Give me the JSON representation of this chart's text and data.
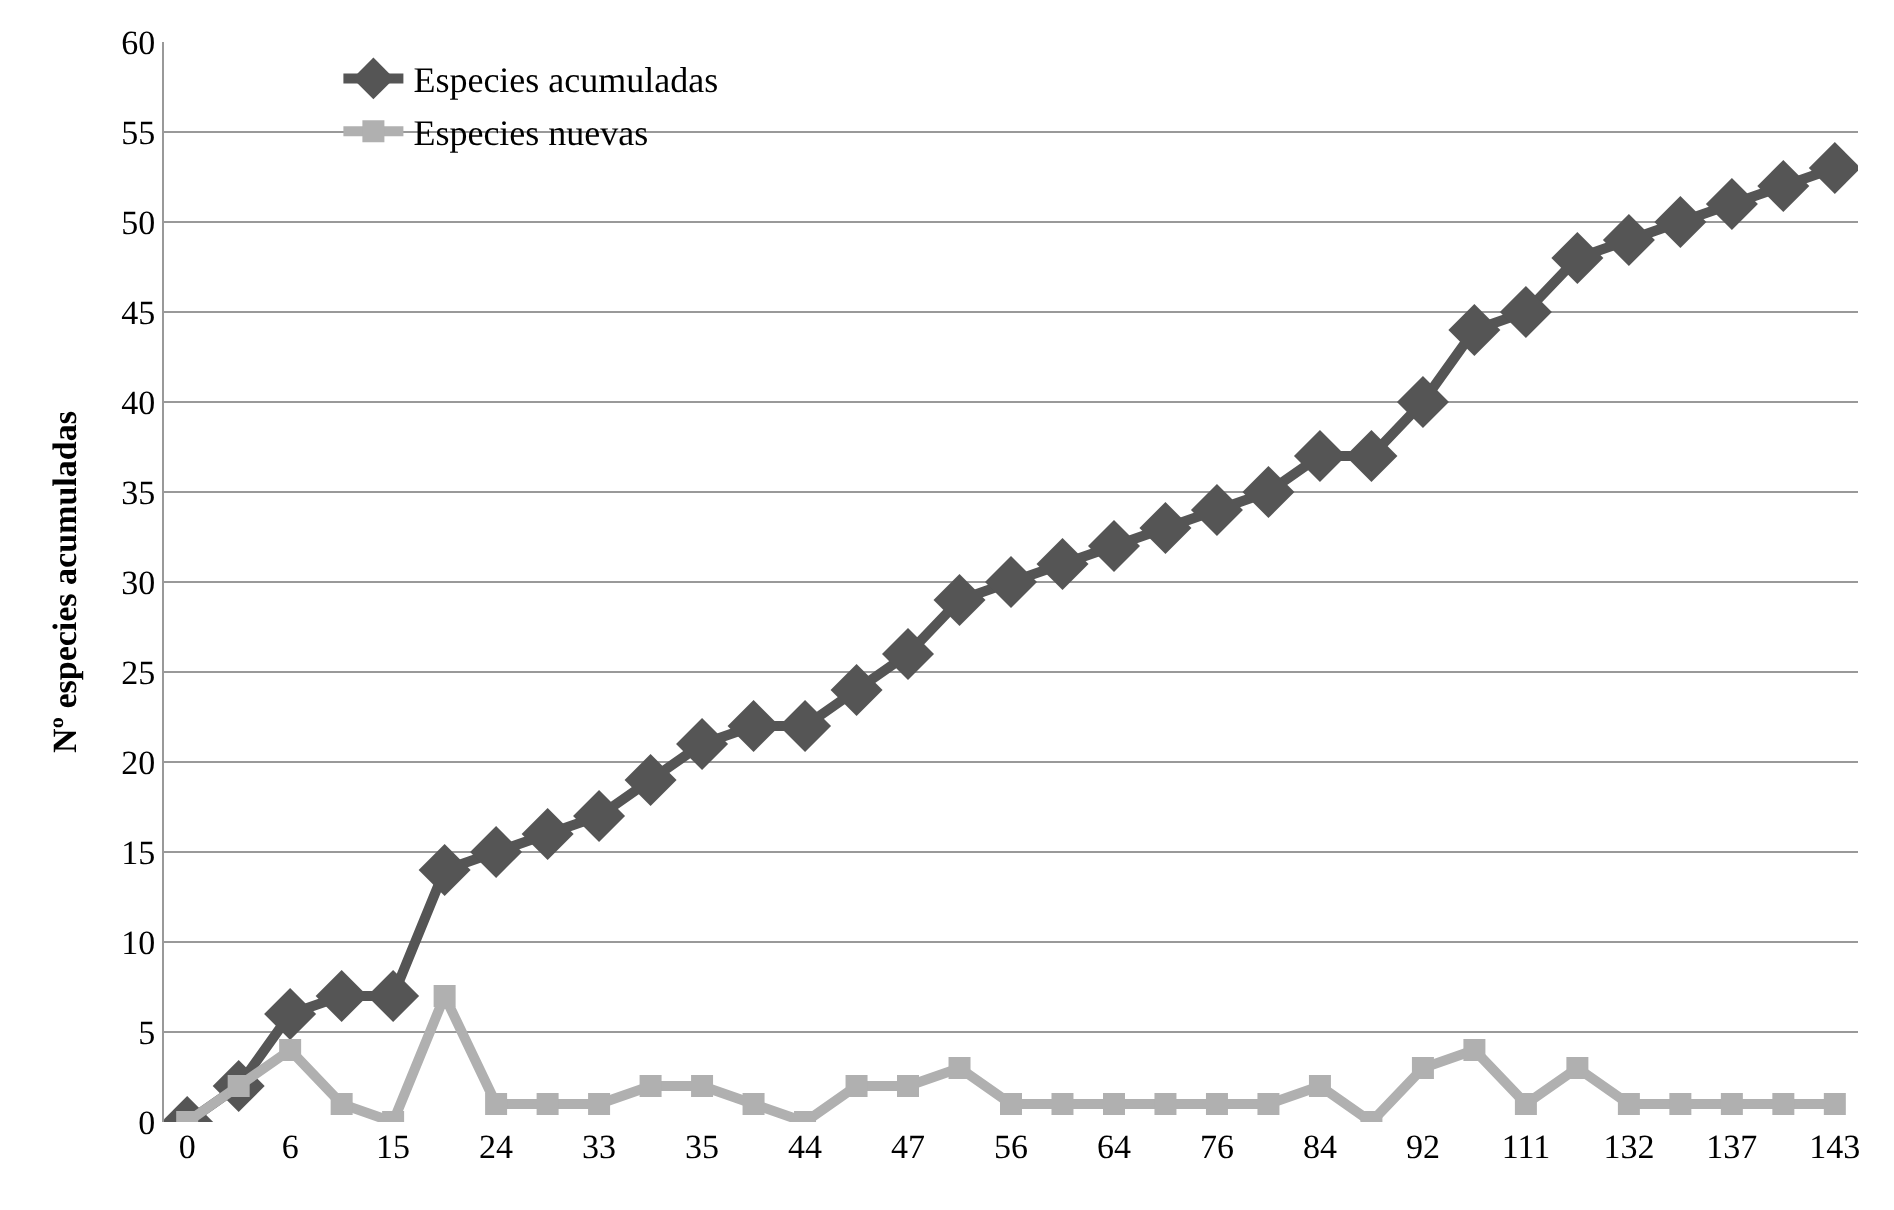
{
  "chart_data": {
    "type": "line",
    "ylabel": "Nº especies acumuladas",
    "categories": [
      "0",
      null,
      "6",
      null,
      "15",
      null,
      "24",
      null,
      "33",
      null,
      "35",
      null,
      "44",
      null,
      "47",
      null,
      "56",
      null,
      "64",
      null,
      "76",
      null,
      "84",
      null,
      "92",
      null,
      "111",
      null,
      "132",
      null,
      "137",
      null,
      "143"
    ],
    "series": [
      {
        "name": "Especies acumuladas",
        "color": "#555555",
        "marker": "diamond",
        "values": [
          0,
          2,
          6,
          7,
          7,
          14,
          15,
          16,
          17,
          19,
          21,
          22,
          22,
          24,
          26,
          29,
          30,
          31,
          32,
          33,
          34,
          35,
          37,
          37,
          40,
          44,
          45,
          48,
          49,
          50,
          51,
          52,
          53
        ]
      },
      {
        "name": "Especies nuevas",
        "color": "#b0b0b0",
        "marker": "square",
        "values": [
          0,
          2,
          4,
          1,
          0,
          7,
          1,
          1,
          1,
          2,
          2,
          1,
          0,
          2,
          2,
          3,
          1,
          1,
          1,
          1,
          1,
          1,
          2,
          0,
          3,
          4,
          1,
          3,
          1,
          1,
          1,
          1,
          1
        ]
      }
    ],
    "ylim": [
      0,
      60
    ],
    "yticks": [
      0,
      5,
      10,
      15,
      20,
      25,
      30,
      35,
      40,
      45,
      50,
      55,
      60
    ],
    "grid": "y",
    "legend": "top left",
    "line_style": "solid"
  }
}
